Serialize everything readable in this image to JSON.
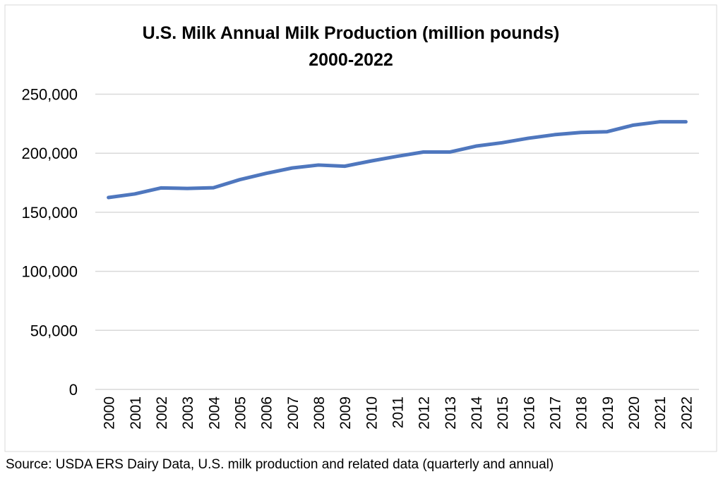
{
  "chart_data": {
    "type": "line",
    "title": "U.S. Milk Annual Milk Production (million pounds)",
    "subtitle": "2000-2022",
    "xlabel": "",
    "ylabel": "",
    "ylim": [
      0,
      250000
    ],
    "yticks": [
      "0",
      "50,000",
      "100,000",
      "150,000",
      "200,000",
      "250,000"
    ],
    "ytick_values": [
      0,
      50000,
      100000,
      150000,
      200000,
      250000
    ],
    "grid": true,
    "legend": "none",
    "line_color": "#4f77be",
    "categories": [
      "2000",
      "2001",
      "2002",
      "2003",
      "2004",
      "2005",
      "2006",
      "2007",
      "2008",
      "2009",
      "2010",
      "2011",
      "2012",
      "2013",
      "2014",
      "2015",
      "2016",
      "2017",
      "2018",
      "2019",
      "2020",
      "2021",
      "2022"
    ],
    "values": [
      162500,
      165500,
      170600,
      170200,
      170800,
      177600,
      182900,
      187500,
      190000,
      189000,
      193400,
      197400,
      201000,
      201000,
      206000,
      208900,
      212700,
      215700,
      217600,
      218200,
      223800,
      226600,
      226600
    ]
  },
  "source": "Source: USDA ERS Dairy Data, U.S. milk production and related data (quarterly and annual)"
}
